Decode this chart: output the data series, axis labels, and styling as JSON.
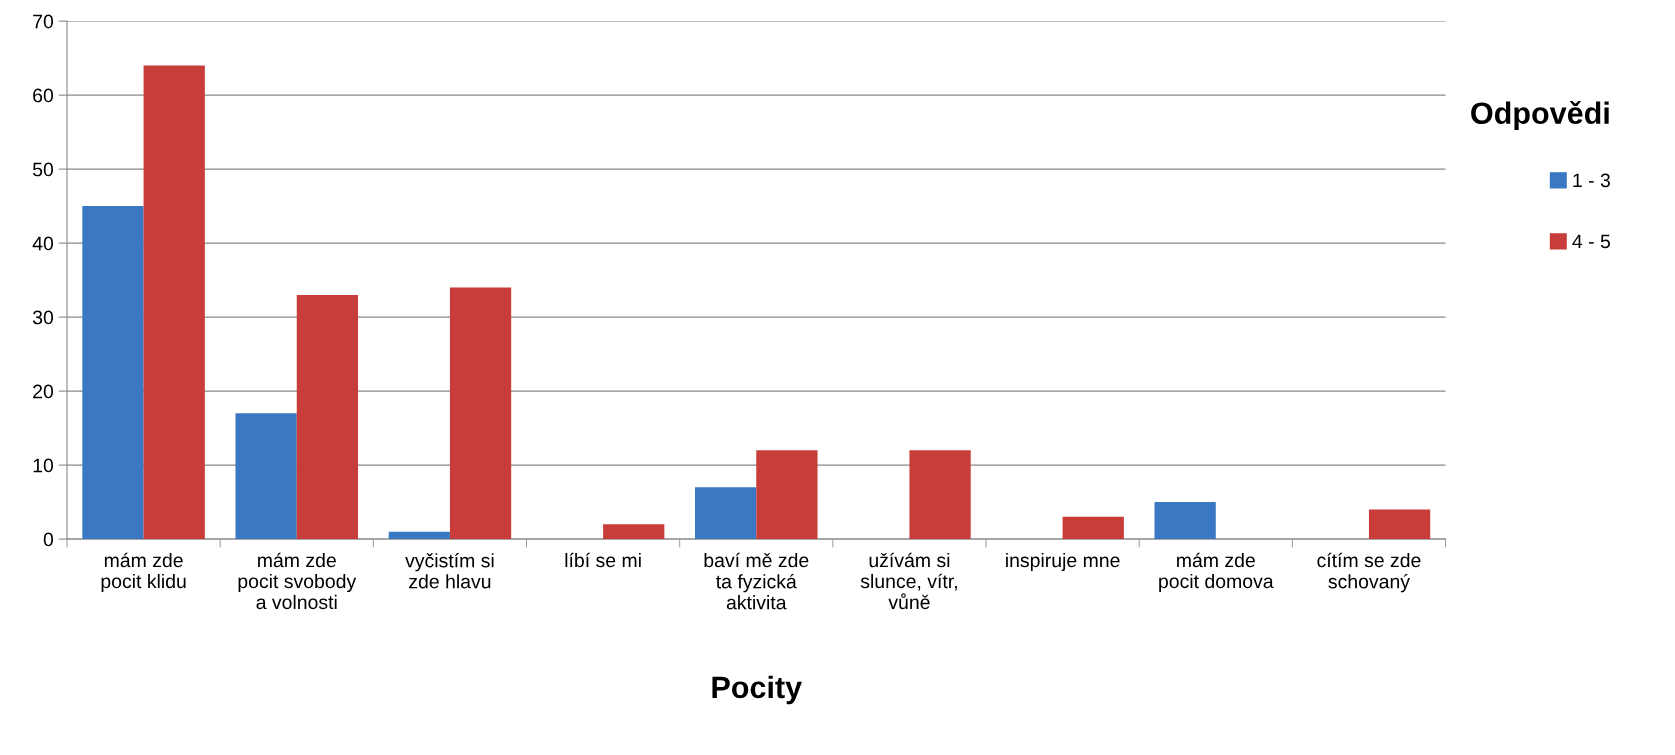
{
  "chart_data": {
    "type": "bar",
    "categories": [
      "mám zde\npocit klidu",
      "mám zde\npocit svobody\na volnosti",
      "vyčistím si\nzde hlavu",
      "líbí se mi",
      "baví mě zde\nta fyzická\naktivita",
      "užívám si\nslunce, vítr,\nvůně",
      "inspiruje mne",
      "mám zde\npocit domova",
      "cítím se zde\nschovaný"
    ],
    "series": [
      {
        "name": "1 - 3",
        "color": "#3a78c4",
        "values": [
          45,
          17,
          1,
          0,
          7,
          0,
          0,
          5,
          0
        ]
      },
      {
        "name": "4 - 5",
        "color": "#c83c3a",
        "values": [
          64,
          33,
          34,
          2,
          12,
          12,
          3,
          0,
          4
        ]
      }
    ],
    "xlabel": "Pocity",
    "legend_title": "Odpovědi",
    "legend": "right",
    "ylim": [
      0,
      70
    ],
    "yticks": [
      0,
      10,
      20,
      30,
      40,
      50,
      60,
      70
    ],
    "grid": "y"
  }
}
